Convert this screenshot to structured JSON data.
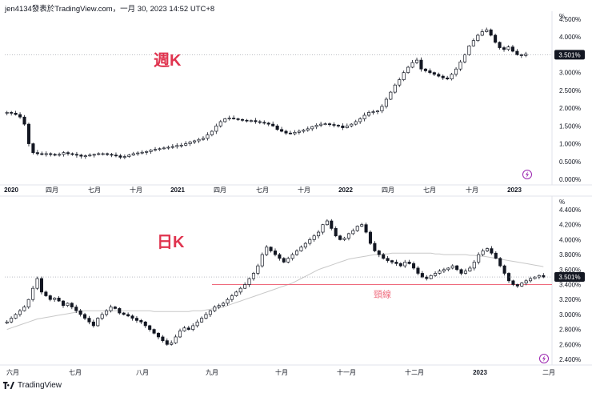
{
  "header": {
    "text": "jen4134發表於TradingView.com，一月 30, 2023 14:52 UTC+8"
  },
  "footer": {
    "brand": "TradingView",
    "logo_icon": "tradingview-logo-icon"
  },
  "colors": {
    "up_fill": "#ffffff",
    "candle_line": "#131722",
    "down_fill": "#131722",
    "title": "#e0344f",
    "neckline": "#ef6b7d",
    "ma": "#c8c8c8",
    "grid": "#e0e3eb",
    "axis_text": "#131722"
  },
  "chart_data": [
    {
      "type": "candlestick",
      "name": "weekly",
      "title": "週K",
      "unit_label": "%",
      "ylim": [
        0,
        4.5
      ],
      "y_ticks": [
        "4.500%",
        "4.000%",
        "3.500%",
        "3.000%",
        "2.500%",
        "2.000%",
        "1.500%",
        "1.000%",
        "0.500%",
        "0.000%"
      ],
      "y_tick_values": [
        4.5,
        4.0,
        3.5,
        3.0,
        2.5,
        2.0,
        1.5,
        1.0,
        0.5,
        0.0
      ],
      "x_ticks": [
        "2020",
        "四月",
        "七月",
        "十月",
        "2021",
        "四月",
        "七月",
        "十月",
        "2022",
        "四月",
        "七月",
        "十月",
        "2023"
      ],
      "x_tick_bold": [
        true,
        false,
        false,
        false,
        true,
        false,
        false,
        false,
        true,
        false,
        false,
        false,
        true
      ],
      "last_value_label": "3.501%",
      "last_value": 3.501,
      "close_series": [
        1.88,
        1.86,
        1.82,
        1.75,
        1.55,
        1.0,
        0.75,
        0.72,
        0.7,
        0.72,
        0.7,
        0.68,
        0.7,
        0.75,
        0.72,
        0.7,
        0.68,
        0.65,
        0.66,
        0.68,
        0.7,
        0.72,
        0.72,
        0.7,
        0.68,
        0.66,
        0.62,
        0.64,
        0.68,
        0.72,
        0.74,
        0.76,
        0.78,
        0.82,
        0.84,
        0.86,
        0.88,
        0.9,
        0.92,
        0.95,
        0.96,
        1.0,
        1.05,
        1.08,
        1.12,
        1.15,
        1.25,
        1.35,
        1.5,
        1.62,
        1.7,
        1.72,
        1.7,
        1.68,
        1.66,
        1.64,
        1.65,
        1.62,
        1.6,
        1.58,
        1.55,
        1.5,
        1.4,
        1.35,
        1.3,
        1.28,
        1.32,
        1.35,
        1.38,
        1.42,
        1.48,
        1.52,
        1.55,
        1.56,
        1.54,
        1.52,
        1.5,
        1.45,
        1.5,
        1.55,
        1.62,
        1.7,
        1.8,
        1.88,
        1.9,
        1.92,
        2.05,
        2.25,
        2.45,
        2.65,
        2.8,
        3.0,
        3.15,
        3.28,
        3.35,
        3.1,
        3.05,
        3.0,
        2.95,
        2.9,
        2.85,
        2.82,
        2.95,
        3.1,
        3.3,
        3.5,
        3.75,
        3.9,
        4.05,
        4.15,
        4.2,
        4.05,
        3.85,
        3.7,
        3.65,
        3.72,
        3.6,
        3.5,
        3.48,
        3.52
      ]
    },
    {
      "type": "candlestick",
      "name": "daily",
      "title": "日K",
      "unit_label": "%",
      "ylim": [
        2.4,
        4.4
      ],
      "y_ticks": [
        "4.400%",
        "4.200%",
        "4.000%",
        "3.800%",
        "3.600%",
        "3.400%",
        "3.200%",
        "3.000%",
        "2.800%",
        "2.600%",
        "2.400%"
      ],
      "y_tick_values": [
        4.4,
        4.2,
        4.0,
        3.8,
        3.6,
        3.4,
        3.2,
        3.0,
        2.8,
        2.6,
        2.4
      ],
      "x_ticks": [
        "六月",
        "七月",
        "八月",
        "九月",
        "十月",
        "十一月",
        "十二月",
        "2023",
        "二月"
      ],
      "x_tick_bold": [
        false,
        false,
        false,
        false,
        false,
        false,
        false,
        true,
        false
      ],
      "last_value_label": "3.501%",
      "last_value": 3.501,
      "neckline_label": "頸線",
      "neckline_value": 3.4,
      "close_series": [
        2.9,
        2.95,
        3.0,
        3.05,
        3.1,
        3.2,
        3.35,
        3.48,
        3.3,
        3.25,
        3.2,
        3.22,
        3.18,
        3.12,
        3.15,
        3.1,
        3.05,
        3.0,
        2.95,
        2.9,
        2.85,
        2.95,
        3.0,
        3.05,
        3.1,
        3.08,
        3.02,
        3.0,
        2.98,
        2.95,
        2.92,
        2.9,
        2.85,
        2.8,
        2.75,
        2.7,
        2.65,
        2.6,
        2.62,
        2.7,
        2.78,
        2.82,
        2.8,
        2.85,
        2.9,
        2.95,
        3.0,
        3.05,
        3.1,
        3.12,
        3.15,
        3.2,
        3.25,
        3.3,
        3.35,
        3.4,
        3.48,
        3.55,
        3.65,
        3.8,
        3.9,
        3.85,
        3.8,
        3.75,
        3.7,
        3.75,
        3.8,
        3.85,
        3.9,
        3.95,
        4.0,
        4.05,
        4.1,
        4.2,
        4.25,
        4.15,
        4.05,
        4.0,
        4.02,
        4.08,
        4.12,
        4.18,
        4.2,
        4.1,
        3.95,
        3.85,
        3.8,
        3.75,
        3.72,
        3.7,
        3.68,
        3.65,
        3.7,
        3.68,
        3.62,
        3.55,
        3.5,
        3.48,
        3.52,
        3.55,
        3.58,
        3.6,
        3.62,
        3.65,
        3.6,
        3.55,
        3.58,
        3.62,
        3.7,
        3.8,
        3.85,
        3.88,
        3.82,
        3.75,
        3.65,
        3.55,
        3.45,
        3.4,
        3.38,
        3.42,
        3.45,
        3.48,
        3.5,
        3.52,
        3.5
      ],
      "ma_series": [
        2.8,
        2.82,
        2.84,
        2.86,
        2.88,
        2.9,
        2.92,
        2.94,
        2.95,
        2.96,
        2.97,
        2.98,
        2.99,
        3.0,
        3.01,
        3.02,
        3.03,
        3.04,
        3.05,
        3.05,
        3.05,
        3.05,
        3.05,
        3.05,
        3.05,
        3.05,
        3.05,
        3.05,
        3.05,
        3.05,
        3.05,
        3.05,
        3.05,
        3.05,
        3.04,
        3.04,
        3.04,
        3.04,
        3.04,
        3.04,
        3.04,
        3.04,
        3.04,
        3.05,
        3.05,
        3.05,
        3.06,
        3.07,
        3.08,
        3.09,
        3.1,
        3.12,
        3.14,
        3.16,
        3.18,
        3.2,
        3.22,
        3.24,
        3.26,
        3.28,
        3.3,
        3.32,
        3.34,
        3.36,
        3.38,
        3.4,
        3.42,
        3.45,
        3.48,
        3.51,
        3.54,
        3.57,
        3.6,
        3.62,
        3.64,
        3.66,
        3.68,
        3.7,
        3.72,
        3.74,
        3.75,
        3.76,
        3.77,
        3.78,
        3.79,
        3.8,
        3.8,
        3.81,
        3.81,
        3.82,
        3.82,
        3.82,
        3.82,
        3.82,
        3.82,
        3.82,
        3.82,
        3.82,
        3.82,
        3.81,
        3.81,
        3.8,
        3.8,
        3.8,
        3.8,
        3.8,
        3.8,
        3.79,
        3.79,
        3.78,
        3.78,
        3.77,
        3.76,
        3.75,
        3.74,
        3.73,
        3.72,
        3.71,
        3.7,
        3.69,
        3.68,
        3.67,
        3.66,
        3.65,
        3.64
      ]
    }
  ]
}
